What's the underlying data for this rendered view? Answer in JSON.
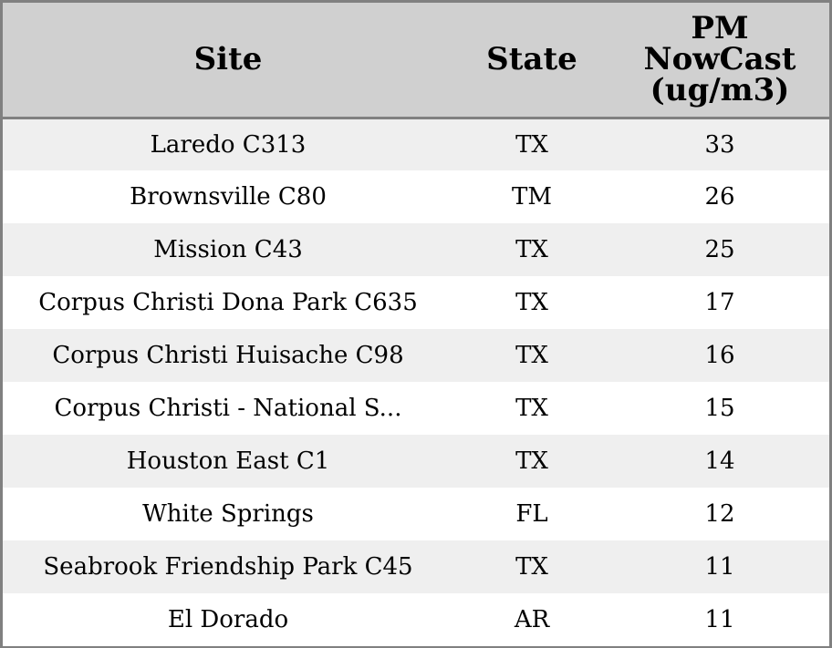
{
  "chart_data": {
    "type": "table",
    "columns": [
      "Site",
      "State",
      "PM NowCast (ug/m3)"
    ],
    "header_lines": {
      "site": [
        "Site"
      ],
      "state": [
        "State"
      ],
      "pm": [
        "PM",
        "NowCast",
        "(ug/m3)"
      ]
    },
    "rows": [
      {
        "site": "Laredo C313",
        "state": "TX",
        "pm": 33
      },
      {
        "site": "Brownsville C80",
        "state": "TM",
        "pm": 26
      },
      {
        "site": "Mission C43",
        "state": "TX",
        "pm": 25
      },
      {
        "site": "Corpus Christi Dona Park C635",
        "state": "TX",
        "pm": 17
      },
      {
        "site": "Corpus Christi Huisache C98",
        "state": "TX",
        "pm": 16
      },
      {
        "site": "Corpus Christi - National S...",
        "state": "TX",
        "pm": 15
      },
      {
        "site": "Houston East C1",
        "state": "TX",
        "pm": 14
      },
      {
        "site": "White Springs",
        "state": "FL",
        "pm": 12
      },
      {
        "site": "Seabrook Friendship Park C45",
        "state": "TX",
        "pm": 11
      },
      {
        "site": "El Dorado",
        "state": "AR",
        "pm": 11
      }
    ]
  },
  "colors": {
    "header_bg": "#d0d0d0",
    "row_stripe": "#efefef",
    "row_plain": "#ffffff",
    "border": "#808080"
  }
}
